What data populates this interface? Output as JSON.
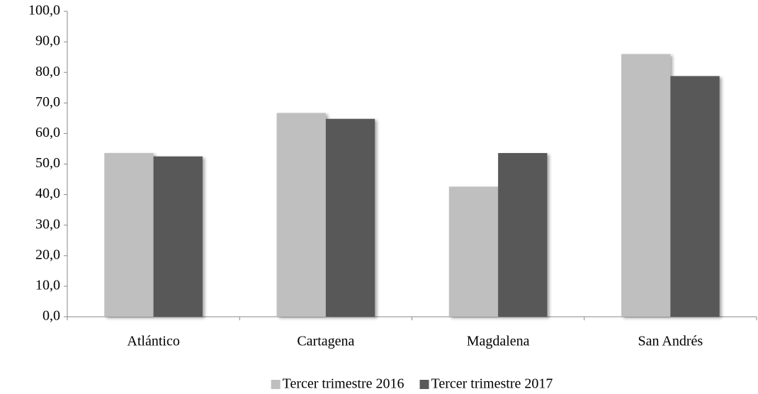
{
  "chart_data": {
    "type": "bar",
    "categories": [
      "Atlántico",
      "Cartagena",
      "Magdalena",
      "San Andrés"
    ],
    "series": [
      {
        "name": "Tercer trimestre 2016",
        "color": "#bfbfbf",
        "values": [
          53.6,
          66.7,
          42.6,
          86.0
        ]
      },
      {
        "name": "Tercer trimestre 2017",
        "color": "#595959",
        "values": [
          52.5,
          64.8,
          53.6,
          78.8
        ]
      }
    ],
    "ylim": [
      0,
      100
    ],
    "yticks": [
      {
        "value": 0,
        "label": "0,0"
      },
      {
        "value": 10,
        "label": "10,0"
      },
      {
        "value": 20,
        "label": "20,0"
      },
      {
        "value": 30,
        "label": "30,0"
      },
      {
        "value": 40,
        "label": "40,0"
      },
      {
        "value": 50,
        "label": "50,0"
      },
      {
        "value": 60,
        "label": "60,0"
      },
      {
        "value": 70,
        "label": "70,0"
      },
      {
        "value": 80,
        "label": "80,0"
      },
      {
        "value": 90,
        "label": "90,0"
      },
      {
        "value": 100,
        "label": "100,0"
      }
    ],
    "grid": false,
    "legend": "bottom"
  }
}
